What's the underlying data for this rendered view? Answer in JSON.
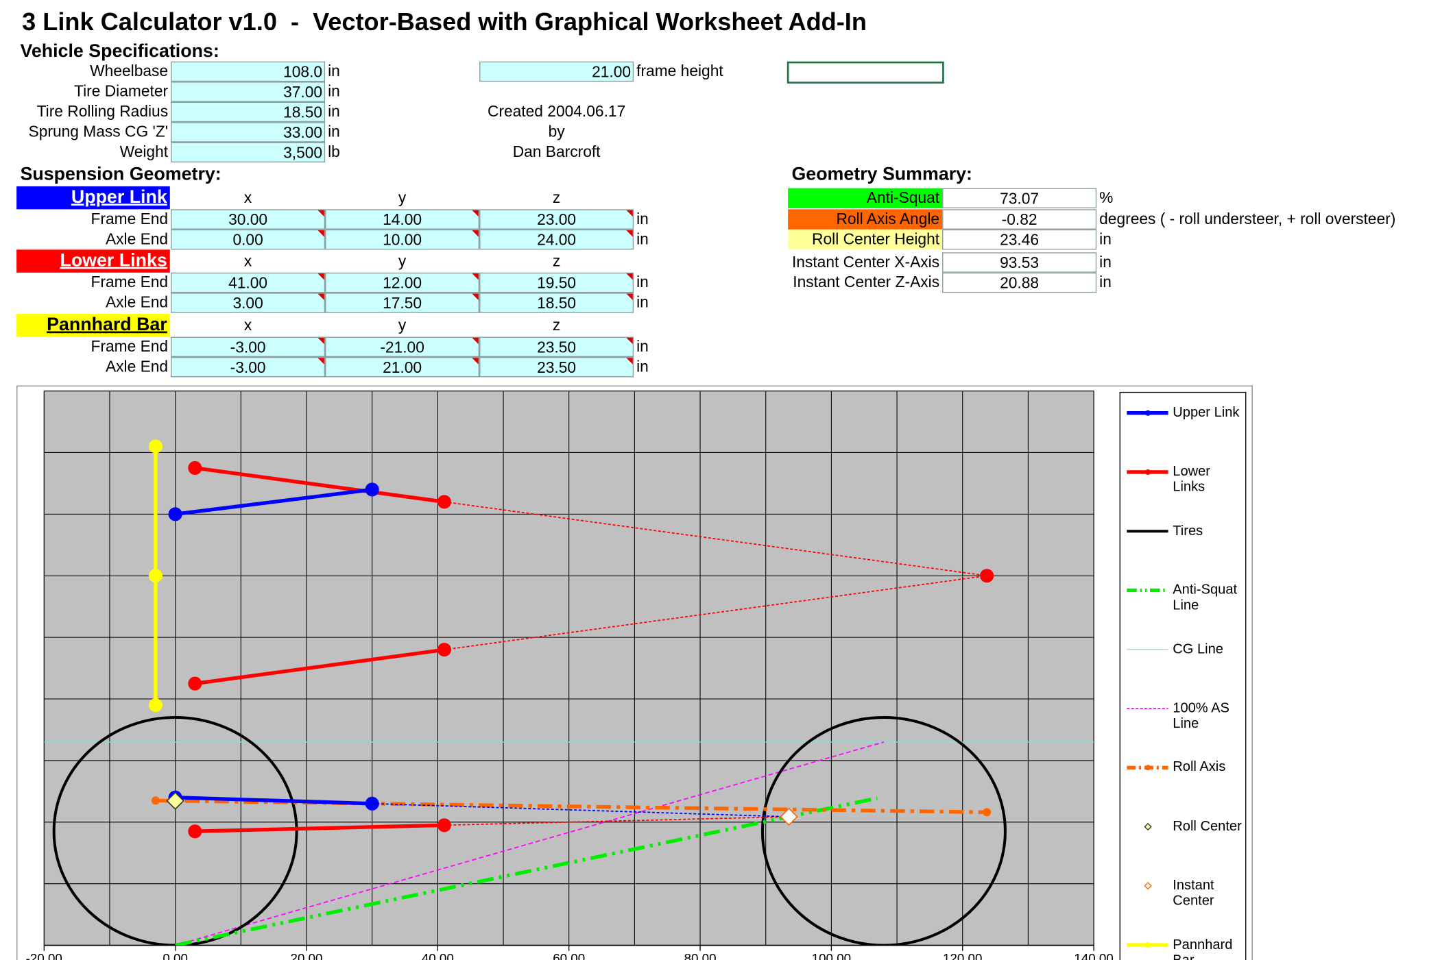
{
  "header": {
    "title": "3 Link Calculator v1.0  -  Vector-Based with Graphical Worksheet Add-In"
  },
  "vehicle_specifications": {
    "heading": "Vehicle Specifications:",
    "rows": [
      {
        "label": "Wheelbase",
        "value": "108.0",
        "unit": "in"
      },
      {
        "label": "Tire Diameter",
        "value": "37.00",
        "unit": "in"
      },
      {
        "label": "Tire Rolling Radius",
        "value": "18.50",
        "unit": "in"
      },
      {
        "label": "Sprung Mass CG 'Z'",
        "value": "33.00",
        "unit": "in"
      },
      {
        "label": "Weight",
        "value": "3,500",
        "unit": "lb"
      }
    ],
    "frame_height": {
      "value": "21.00",
      "label": "frame height"
    },
    "credits": [
      "Created 2004.06.17",
      "by",
      "Dan Barcroft"
    ]
  },
  "suspension_geometry": {
    "heading": "Suspension Geometry:",
    "groups": [
      {
        "name": "Upper Link",
        "color": "#0000ff",
        "text_color": "#ffffff",
        "columns": [
          "x",
          "y",
          "z"
        ],
        "rows": [
          {
            "label": "Frame End",
            "values": [
              "30.00",
              "14.00",
              "23.00"
            ],
            "unit": "in"
          },
          {
            "label": "Axle End",
            "values": [
              "0.00",
              "10.00",
              "24.00"
            ],
            "unit": "in"
          }
        ]
      },
      {
        "name": "Lower Links",
        "color": "#ff0000",
        "text_color": "#ffffff",
        "columns": [
          "x",
          "y",
          "z"
        ],
        "rows": [
          {
            "label": "Frame End",
            "values": [
              "41.00",
              "12.00",
              "19.50"
            ],
            "unit": "in"
          },
          {
            "label": "Axle End",
            "values": [
              "3.00",
              "17.50",
              "18.50"
            ],
            "unit": "in"
          }
        ]
      },
      {
        "name": "Pannhard Bar",
        "color": "#ffff00",
        "text_color": "#000000",
        "columns": [
          "x",
          "y",
          "z"
        ],
        "rows": [
          {
            "label": "Frame End",
            "values": [
              "-3.00",
              "-21.00",
              "23.50"
            ],
            "unit": "in"
          },
          {
            "label": "Axle End",
            "values": [
              "-3.00",
              "21.00",
              "23.50"
            ],
            "unit": "in"
          }
        ]
      }
    ]
  },
  "geometry_summary": {
    "heading": "Geometry Summary:",
    "rows": [
      {
        "label": "Anti-Squat",
        "value": "73.07",
        "unit": "%",
        "color": "#00ff00"
      },
      {
        "label": "Roll Axis Angle",
        "value": "-0.82",
        "unit": "degrees ( - roll understeer, + roll oversteer)",
        "color": "#ff6600"
      },
      {
        "label": "Roll Center Height",
        "value": "23.46",
        "unit": "in",
        "color": "#ffff99"
      },
      {
        "label": "Instant Center X-Axis",
        "value": "93.53",
        "unit": "in"
      },
      {
        "label": "Instant Center Z-Axis",
        "value": "20.88",
        "unit": "in"
      }
    ]
  },
  "chart_data": {
    "type": "line",
    "xlim": [
      -20,
      140
    ],
    "ylim": [
      0,
      90
    ],
    "xticks": [
      {
        "value": -20,
        "label": "-20.00"
      },
      {
        "value": 0,
        "label": "0.00"
      },
      {
        "value": 20,
        "label": "20.00"
      },
      {
        "value": 40,
        "label": "40.00"
      },
      {
        "value": 60,
        "label": "60.00"
      },
      {
        "value": 80,
        "label": "80.00"
      },
      {
        "value": 100,
        "label": "100.00"
      },
      {
        "value": 120,
        "label": "120.00"
      },
      {
        "value": 140,
        "label": "140.00"
      }
    ],
    "xminorticks": [
      -10,
      10,
      30,
      50,
      70,
      90,
      110,
      130
    ],
    "yticks": [
      0,
      10,
      20,
      30,
      40,
      50,
      60,
      70,
      80,
      90
    ],
    "grid": true,
    "plot_background": "#c0c0c0",
    "series": [
      {
        "name": "Upper Link",
        "color": "#0000ff",
        "width": 4,
        "style": "solid",
        "marker": "circle",
        "x": [
          0,
          30,
          null,
          0,
          30
        ],
        "values": [
          70,
          74,
          null,
          24,
          23
        ],
        "extension": {
          "x": [
            30,
            93.53
          ],
          "values": [
            23,
            20.88
          ]
        }
      },
      {
        "name": "Lower Links",
        "color": "#ff0000",
        "width": 4,
        "style": "solid",
        "marker": "circle",
        "x": [
          3,
          41,
          null,
          3,
          41,
          null,
          3,
          41,
          null,
          123.7
        ],
        "values": [
          77.5,
          72,
          null,
          42.5,
          48,
          null,
          18.5,
          19.5,
          null,
          60
        ],
        "extension": {
          "x": [
            41,
            123.7,
            41,
            null,
            41,
            93.53
          ],
          "values": [
            72,
            60,
            48,
            null,
            19.5,
            20.88
          ]
        }
      },
      {
        "name": "Tires",
        "color": "#000000",
        "width": 3,
        "style": "solid",
        "shape": "circle",
        "radius": 18.5,
        "x": [
          0,
          108
        ],
        "values": [
          18.5,
          18.5
        ]
      },
      {
        "name": "Anti-Squat Line",
        "color": "#00ee00",
        "width": 4,
        "style": "dashdotdot",
        "x": [
          0,
          107
        ],
        "values": [
          0,
          23.88
        ]
      },
      {
        "name": "CG Line",
        "color": "#7fdfe0",
        "width": 1,
        "style": "solid",
        "x": [
          -20,
          140
        ],
        "values": [
          33,
          33
        ]
      },
      {
        "name": "100% AS Line",
        "color": "#ff00ff",
        "width": 1.3,
        "style": "dashed",
        "x": [
          0,
          108
        ],
        "values": [
          0,
          33
        ]
      },
      {
        "name": "Roll Axis",
        "color": "#ff6600",
        "width": 4,
        "style": "dashdot",
        "marker": "small-circle",
        "x": [
          -3,
          123.7
        ],
        "values": [
          23.5,
          21.6
        ]
      },
      {
        "name": "Roll Center",
        "color": "#333333",
        "style": "none",
        "marker": "diamond",
        "marker_fill": "#ffff99",
        "x": [
          0
        ],
        "values": [
          23.46
        ]
      },
      {
        "name": "Instant Center",
        "color": "#ff6600",
        "style": "none",
        "marker": "diamond",
        "marker_fill": "#ffffff",
        "x": [
          93.53
        ],
        "values": [
          20.88
        ]
      },
      {
        "name": "Pannhard Bar",
        "color": "#ffff00",
        "width": 4,
        "style": "solid",
        "marker": "circle",
        "x": [
          -3,
          -3,
          -3
        ],
        "values": [
          81,
          60,
          39
        ]
      }
    ]
  }
}
